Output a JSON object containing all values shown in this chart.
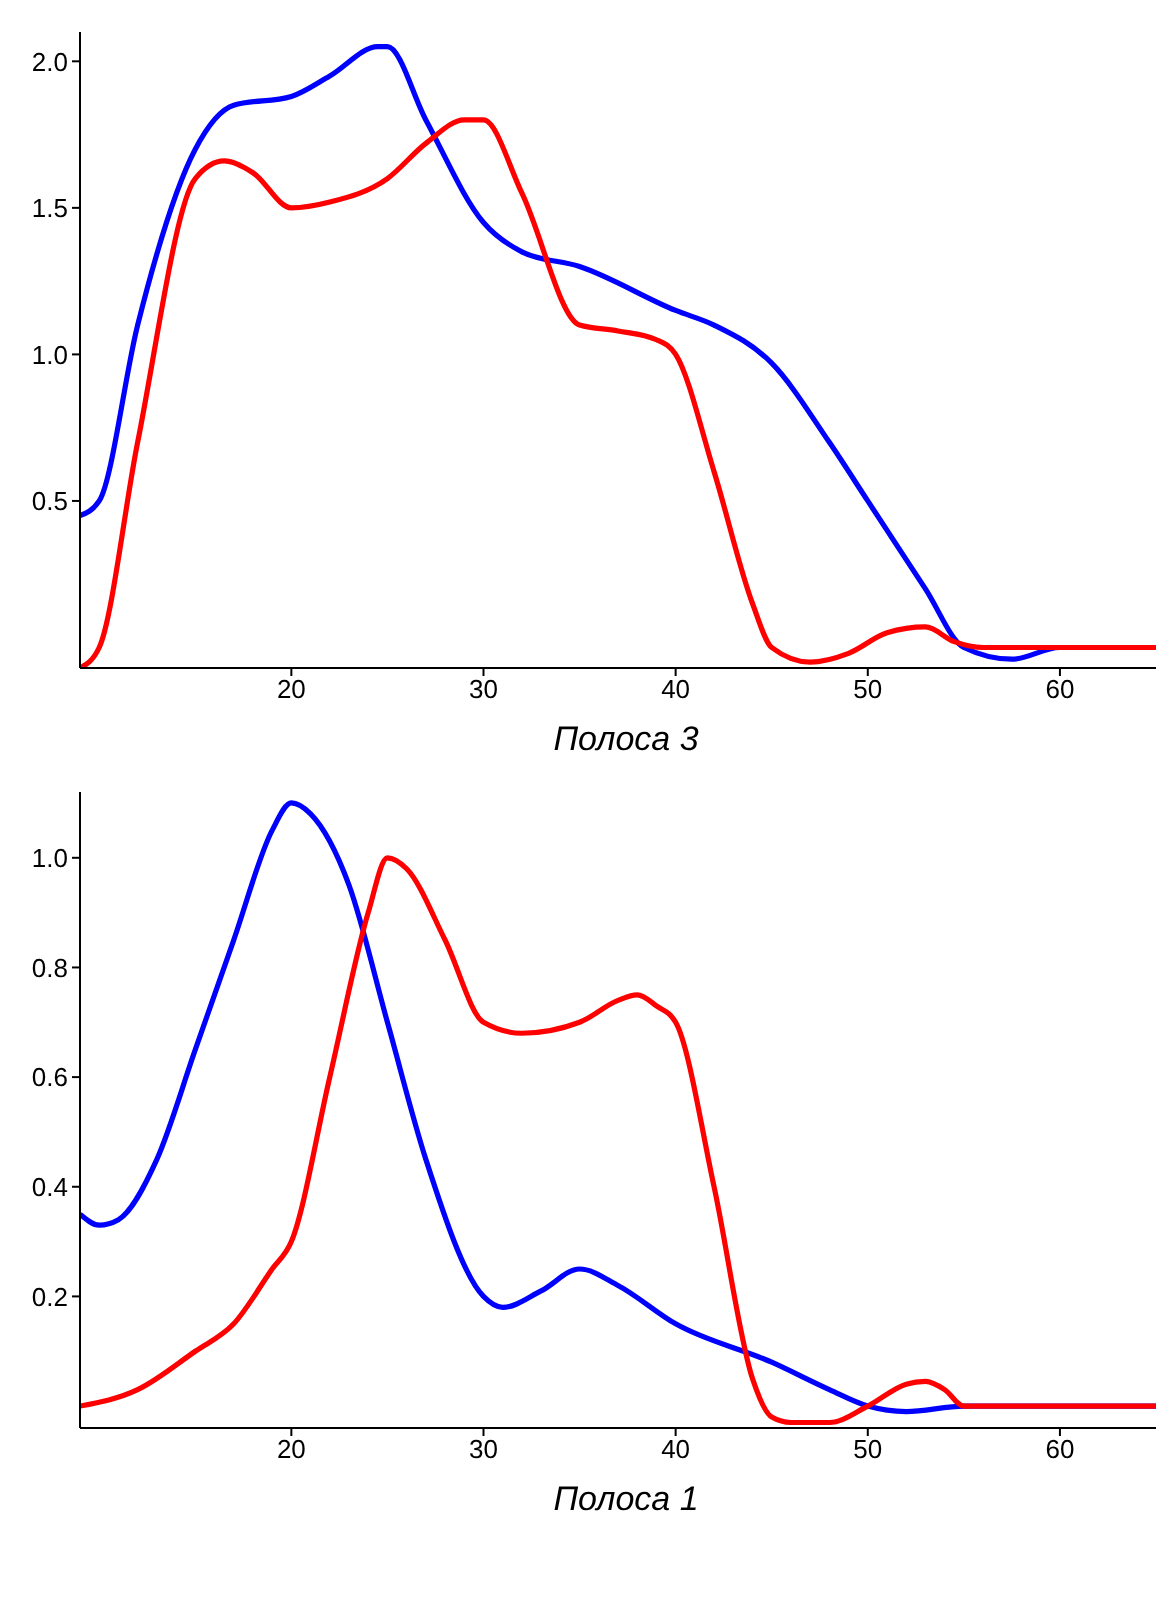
{
  "chart_data": [
    {
      "type": "line",
      "xlabel": "Полоса 3",
      "xlim": [
        9,
        65
      ],
      "xticks": [
        20,
        30,
        40,
        50,
        60
      ],
      "ylim": [
        -0.07,
        2.1
      ],
      "yticks": [
        {
          "value": 0.5,
          "label": "0.5"
        },
        {
          "value": 1,
          "label": "1.0"
        },
        {
          "value": 1.5,
          "label": "1.5"
        },
        {
          "value": 2,
          "label": "2.0"
        }
      ],
      "grid": false,
      "legend": false,
      "marker": "none",
      "line_style": "solid",
      "series": [
        {
          "color": "#0000ff",
          "x": [
            9,
            10,
            12,
            15,
            17,
            20,
            22,
            24.5,
            25,
            27,
            30,
            32,
            35,
            40,
            42,
            45,
            48,
            50,
            53,
            55,
            57.5,
            60,
            65
          ],
          "values": [
            0.45,
            0.5,
            1.1,
            1.7,
            1.85,
            1.88,
            1.95,
            2.05,
            2.05,
            1.8,
            1.45,
            1.35,
            1.3,
            1.15,
            1.1,
            0.97,
            0.7,
            0.5,
            0.2,
            0.0,
            -0.04,
            0,
            0
          ]
        },
        {
          "color": "#ff0000",
          "x": [
            9,
            10,
            12,
            15,
            16.5,
            18,
            20,
            22,
            25,
            27,
            29,
            30,
            32,
            35,
            37,
            39,
            40,
            42,
            44,
            45,
            47,
            49,
            51,
            53,
            54.5,
            56,
            65
          ],
          "values": [
            -0.07,
            0,
            0.7,
            1.6,
            1.66,
            1.62,
            1.5,
            1.52,
            1.6,
            1.72,
            1.8,
            1.8,
            1.55,
            1.1,
            1.08,
            1.05,
            1.0,
            0.6,
            0.15,
            0.0,
            -0.05,
            -0.02,
            0.05,
            0.07,
            0.02,
            0,
            0
          ]
        }
      ]
    },
    {
      "type": "line",
      "xlabel": "Полоса 1",
      "xlim": [
        9,
        65
      ],
      "xticks": [
        20,
        30,
        40,
        50,
        60
      ],
      "ylim": [
        -0.04,
        1.12
      ],
      "yticks": [
        0.2,
        0.4,
        0.6,
        0.8,
        {
          "value": 1,
          "label": "1.0"
        }
      ],
      "grid": false,
      "legend": false,
      "marker": "none",
      "line_style": "solid",
      "series": [
        {
          "color": "#0000ff",
          "x": [
            9,
            10,
            11,
            13,
            15,
            17,
            19,
            20,
            21,
            23,
            25,
            27,
            30,
            31,
            33,
            35,
            37,
            40,
            45,
            48,
            50,
            52,
            55,
            65
          ],
          "values": [
            0.35,
            0.33,
            0.34,
            0.45,
            0.65,
            0.85,
            1.05,
            1.1,
            1.08,
            0.95,
            0.7,
            0.45,
            0.2,
            0.18,
            0.21,
            0.25,
            0.22,
            0.15,
            0.08,
            0.03,
            0.0,
            -0.01,
            0,
            0
          ]
        },
        {
          "color": "#ff0000",
          "x": [
            9,
            12,
            15,
            17,
            19,
            20,
            22,
            24,
            25,
            26,
            28,
            30,
            32,
            35,
            37,
            38,
            39,
            40,
            42,
            44,
            45,
            46,
            48,
            50,
            52,
            53,
            54,
            55,
            65
          ],
          "values": [
            0,
            0.03,
            0.1,
            0.15,
            0.25,
            0.3,
            0.6,
            0.9,
            1.0,
            0.98,
            0.85,
            0.7,
            0.68,
            0.7,
            0.74,
            0.75,
            0.73,
            0.7,
            0.4,
            0.05,
            -0.02,
            -0.03,
            -0.03,
            0.0,
            0.04,
            0.045,
            0.03,
            0,
            0
          ]
        }
      ]
    }
  ]
}
